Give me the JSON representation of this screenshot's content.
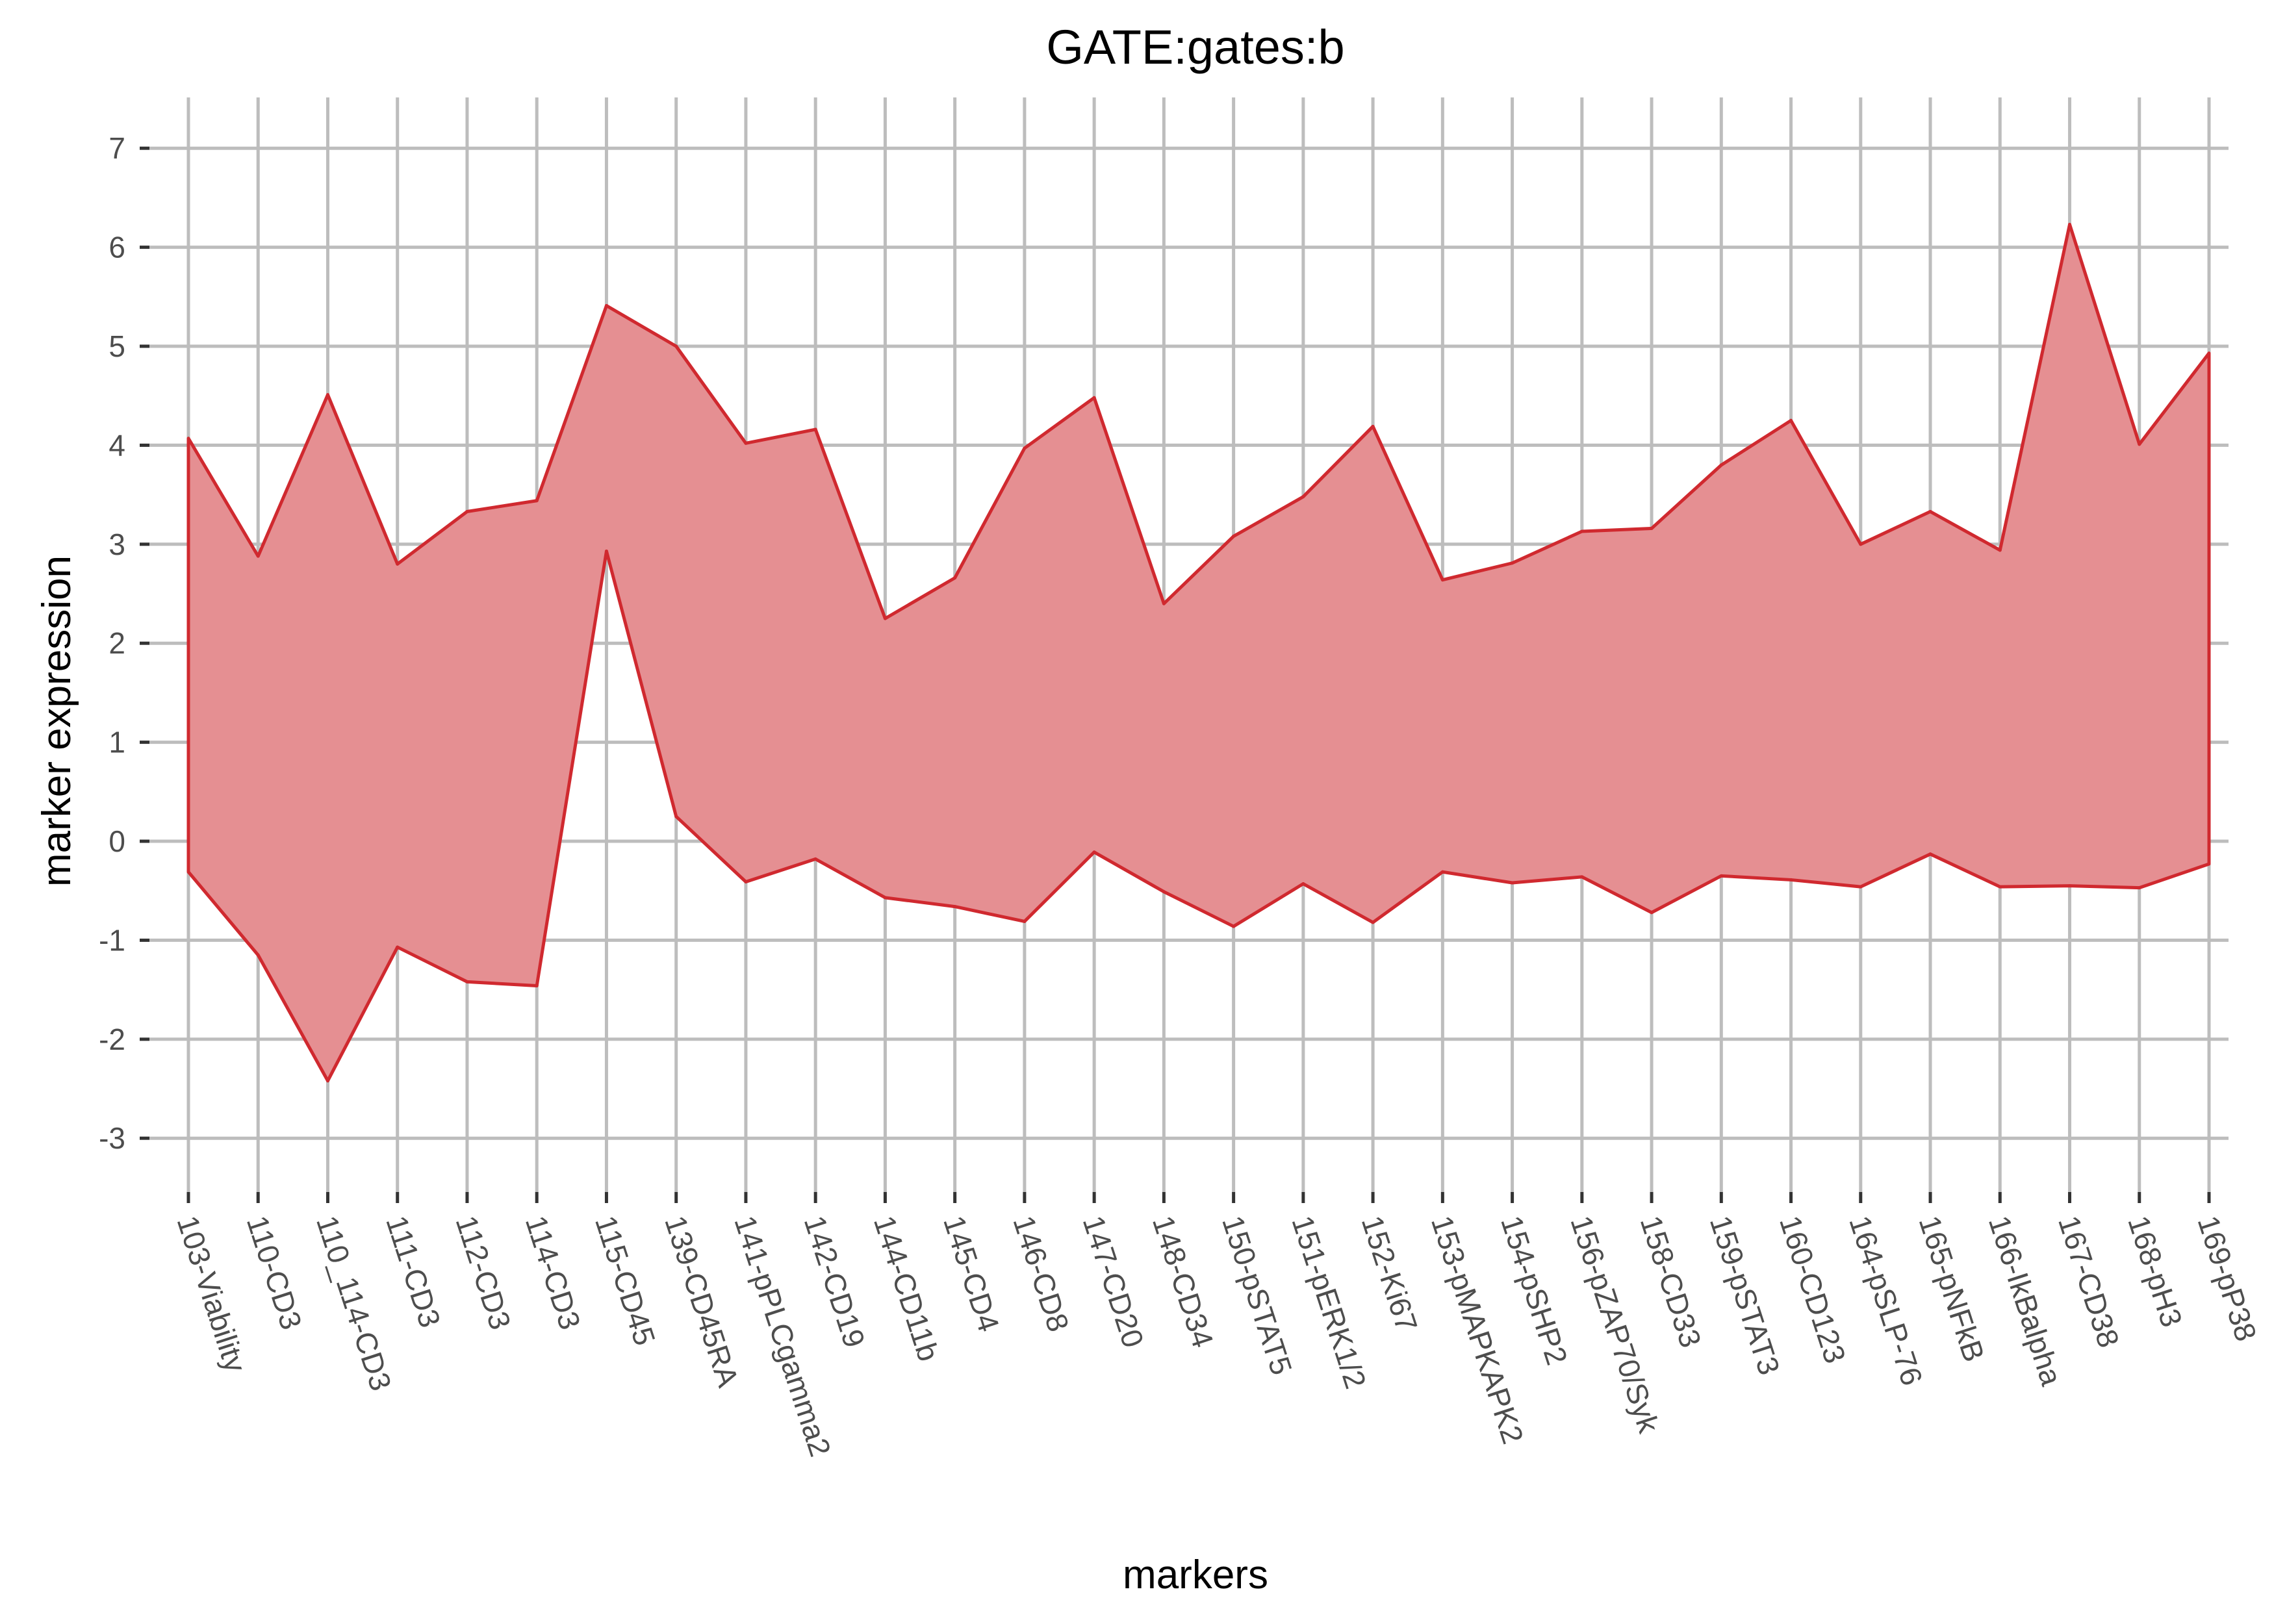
{
  "chart_data": {
    "type": "area",
    "title": "GATE:gates:b",
    "xlabel": "markers",
    "ylabel": "marker expression",
    "ylim": [
      -3.5,
      7.3
    ],
    "yticks": [
      -3,
      -2,
      -1,
      0,
      1,
      2,
      3,
      4,
      5,
      6,
      7
    ],
    "grid": true,
    "categories": [
      "103-Viability",
      "110-CD3",
      "110_114-CD3",
      "111-CD3",
      "112-CD3",
      "114-CD3",
      "115-CD45",
      "139-CD45RA",
      "141-pPLCgamma2",
      "142-CD19",
      "144-CD11b",
      "145-CD4",
      "146-CD8",
      "147-CD20",
      "148-CD34",
      "150-pSTAT5",
      "151-pERK1/2",
      "152-Ki67",
      "153-pMAPKAPK2",
      "154-pSHP2",
      "156-pZAP70/Syk",
      "158-CD33",
      "159-pSTAT3",
      "160-CD123",
      "164-pSLP-76",
      "165-pNFkB",
      "166-IkBalpha",
      "167-CD38",
      "168-pH3",
      "169-pP38"
    ],
    "series": [
      {
        "values": [
          4.07,
          2.88,
          4.51,
          2.8,
          3.33,
          3.44,
          5.41,
          5.0,
          4.02,
          4.16,
          2.25,
          2.66,
          3.97,
          4.48,
          2.4,
          3.08,
          3.48,
          4.19,
          2.64,
          2.81,
          3.13,
          3.16,
          3.8,
          4.25,
          3.0,
          3.33,
          2.94,
          6.23,
          4.01,
          4.93
        ]
      },
      {
        "values": [
          -0.31,
          -1.15,
          -2.42,
          -1.07,
          -1.42,
          -1.46,
          2.93,
          0.25,
          -0.41,
          -0.18,
          -0.57,
          -0.66,
          -0.81,
          -0.11,
          -0.51,
          -0.86,
          -0.43,
          -0.82,
          -0.31,
          -0.42,
          -0.36,
          -0.72,
          -0.35,
          -0.39,
          -0.46,
          -0.13,
          -0.46,
          -0.45,
          -0.47,
          -0.23
        ]
      }
    ],
    "colors": {
      "fill": "#e58f92",
      "line": "#d0292f"
    }
  }
}
